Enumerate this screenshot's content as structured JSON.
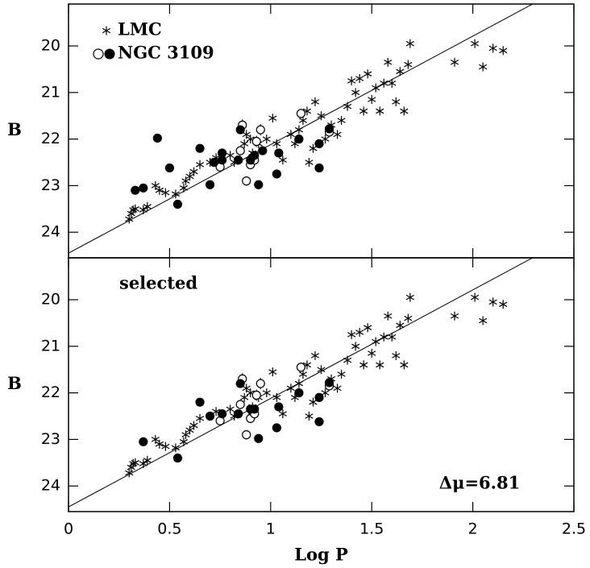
{
  "chart_data": [
    {
      "type": "scatter",
      "xlim": [
        0,
        2.5
      ],
      "ylim": [
        24.55,
        19.1
      ],
      "xticks": [
        0,
        0.5,
        1,
        1.5,
        2,
        2.5
      ],
      "xtick_labels": false,
      "yticks": [
        20,
        21,
        22,
        23,
        24
      ],
      "ylabel": "B",
      "legend": "upper left",
      "series": [
        {
          "name": "LMC",
          "marker": "star",
          "color": "#000000",
          "x": [
            0.3,
            0.31,
            0.32,
            0.33,
            0.37,
            0.39,
            0.43,
            0.45,
            0.48,
            0.53,
            0.57,
            0.58,
            0.6,
            0.62,
            0.65,
            0.7,
            0.73,
            0.8,
            0.82,
            0.87,
            0.88,
            0.9,
            0.91,
            0.94,
            0.98,
            1.01,
            1.03,
            1.06,
            1.1,
            1.12,
            1.14,
            1.16,
            1.18,
            1.19,
            1.21,
            1.22,
            1.25,
            1.27,
            1.3,
            1.33,
            1.35,
            1.38,
            1.4,
            1.42,
            1.44,
            1.46,
            1.48,
            1.5,
            1.52,
            1.54,
            1.56,
            1.58,
            1.6,
            1.62,
            1.64,
            1.66,
            1.68,
            1.69,
            1.91,
            2.01,
            2.05,
            2.1,
            2.15
          ],
          "values": [
            23.72,
            23.6,
            23.52,
            23.5,
            23.52,
            23.45,
            23.0,
            23.1,
            23.15,
            23.18,
            23.05,
            22.9,
            22.8,
            22.7,
            22.55,
            22.5,
            22.4,
            22.35,
            22.5,
            22.1,
            21.9,
            22.0,
            22.3,
            22.1,
            22.0,
            21.55,
            22.1,
            22.45,
            21.9,
            22.1,
            21.8,
            21.6,
            21.4,
            22.5,
            22.2,
            21.2,
            21.5,
            22.0,
            21.7,
            21.9,
            21.6,
            21.3,
            20.75,
            21.0,
            20.7,
            21.4,
            20.6,
            21.15,
            20.9,
            21.4,
            20.8,
            20.35,
            20.8,
            21.2,
            20.55,
            21.4,
            20.4,
            19.95,
            20.35,
            19.95,
            20.45,
            20.05,
            20.1
          ]
        },
        {
          "name": "NGC 3109",
          "marker": "open",
          "color": "#000000",
          "x": [
            0.75,
            0.85,
            0.86,
            0.88,
            0.9,
            0.91,
            0.92,
            0.93,
            0.95,
            1.15,
            1.29
          ],
          "values": [
            22.6,
            22.25,
            21.7,
            22.9,
            22.55,
            22.4,
            22.45,
            22.05,
            21.8,
            21.45,
            21.85
          ],
          "errors": [
            0.1,
            0.1,
            0.12,
            0.1,
            0.1,
            0.1,
            0.12,
            0.12,
            0.12,
            0.1,
            0.1
          ]
        },
        {
          "marker": "filled",
          "color": "#000000",
          "x": [
            0.33,
            0.37,
            0.44,
            0.5,
            0.54,
            0.65,
            0.7,
            0.72,
            0.76,
            0.76,
            0.84,
            0.85,
            0.9,
            0.92,
            0.94,
            0.96,
            1.03,
            1.04,
            1.14,
            1.24,
            1.24,
            1.29
          ],
          "values": [
            23.1,
            23.05,
            21.98,
            22.62,
            23.4,
            22.2,
            22.98,
            22.5,
            22.45,
            22.3,
            22.45,
            21.8,
            22.45,
            22.35,
            22.98,
            22.25,
            22.75,
            22.3,
            22.0,
            22.62,
            22.1,
            21.78
          ]
        }
      ],
      "fit": {
        "x": [
          0,
          2.3
        ],
        "values": [
          24.45,
          19.09
        ]
      }
    },
    {
      "type": "scatter",
      "xlim": [
        0,
        2.5
      ],
      "ylim": [
        24.55,
        19.1
      ],
      "xticks": [
        0,
        0.5,
        1,
        1.5,
        2,
        2.5
      ],
      "xtick_labels": true,
      "yticks": [
        20,
        21,
        22,
        23,
        24
      ],
      "ylabel": "B",
      "xlabel": "Log P",
      "annotations": [
        "selected",
        "Δμ=6.81"
      ],
      "series": [
        {
          "marker": "star",
          "color": "#000000",
          "x": [
            0.3,
            0.31,
            0.32,
            0.33,
            0.37,
            0.39,
            0.43,
            0.45,
            0.48,
            0.53,
            0.57,
            0.58,
            0.6,
            0.62,
            0.65,
            0.7,
            0.73,
            0.8,
            0.82,
            0.87,
            0.88,
            0.9,
            0.91,
            0.94,
            0.98,
            1.01,
            1.03,
            1.06,
            1.1,
            1.12,
            1.14,
            1.16,
            1.18,
            1.19,
            1.21,
            1.22,
            1.25,
            1.27,
            1.3,
            1.33,
            1.35,
            1.38,
            1.4,
            1.42,
            1.44,
            1.46,
            1.48,
            1.5,
            1.52,
            1.54,
            1.56,
            1.58,
            1.6,
            1.62,
            1.64,
            1.66,
            1.68,
            1.69,
            1.91,
            2.01,
            2.05,
            2.1,
            2.15
          ],
          "values": [
            23.72,
            23.6,
            23.52,
            23.5,
            23.52,
            23.45,
            23.0,
            23.1,
            23.15,
            23.18,
            23.05,
            22.9,
            22.8,
            22.7,
            22.55,
            22.5,
            22.4,
            22.35,
            22.5,
            22.1,
            21.9,
            22.0,
            22.3,
            22.1,
            22.0,
            21.55,
            22.1,
            22.45,
            21.9,
            22.1,
            21.8,
            21.6,
            21.4,
            22.5,
            22.2,
            21.2,
            21.5,
            22.0,
            21.7,
            21.9,
            21.6,
            21.3,
            20.75,
            21.0,
            20.7,
            21.4,
            20.6,
            21.15,
            20.9,
            21.4,
            20.8,
            20.35,
            20.8,
            21.2,
            20.55,
            21.4,
            20.4,
            19.95,
            20.35,
            19.95,
            20.45,
            20.05,
            20.1
          ]
        },
        {
          "marker": "open",
          "color": "#000000",
          "x": [
            0.75,
            0.85,
            0.86,
            0.88,
            0.9,
            0.91,
            0.92,
            0.93,
            0.95,
            1.15,
            1.29
          ],
          "values": [
            22.6,
            22.25,
            21.7,
            22.9,
            22.55,
            22.4,
            22.45,
            22.05,
            21.8,
            21.45,
            21.85
          ],
          "errors": [
            0.1,
            0.1,
            0.12,
            0.1,
            0.1,
            0.1,
            0.12,
            0.12,
            0.12,
            0.1,
            0.1
          ]
        },
        {
          "marker": "filled",
          "color": "#000000",
          "x": [
            0.37,
            0.54,
            0.65,
            0.7,
            0.76,
            0.84,
            0.85,
            0.9,
            0.92,
            0.94,
            1.03,
            1.04,
            1.14,
            1.24,
            1.24,
            1.29
          ],
          "values": [
            23.05,
            23.4,
            22.2,
            22.5,
            22.45,
            22.45,
            21.8,
            22.35,
            22.35,
            22.98,
            22.75,
            22.3,
            22.0,
            22.62,
            22.1,
            21.78
          ]
        }
      ],
      "fit": {
        "x": [
          0,
          2.3
        ],
        "values": [
          24.45,
          19.09
        ]
      }
    }
  ]
}
